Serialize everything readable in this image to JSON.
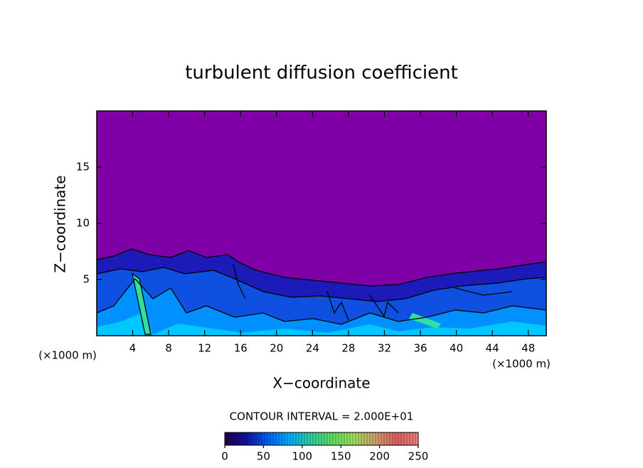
{
  "chart_data": {
    "type": "contour",
    "title": "turbulent diffusion coefficient",
    "xlabel": "X−coordinate",
    "ylabel": "Z−coordinate",
    "x_unit": "(×1000 m)",
    "y_unit": "(×1000 m)",
    "xlim": [
      0,
      50
    ],
    "ylim": [
      0,
      20
    ],
    "xticks": [
      4,
      8,
      12,
      16,
      20,
      24,
      28,
      32,
      36,
      40,
      44,
      48
    ],
    "yticks": [
      5,
      10,
      15
    ],
    "annotation": "CONTOUR INTERVAL = 2.000E+01",
    "colorbar": {
      "lim": [
        0,
        250
      ],
      "ticks": [
        0,
        50,
        100,
        150,
        200,
        250
      ],
      "colors": [
        "#20004a",
        "#1010a0",
        "#0060ff",
        "#00b0ff",
        "#30d0a0",
        "#60e060",
        "#a0e060",
        "#d0a070",
        "#e06060",
        "#f08080"
      ]
    }
  }
}
